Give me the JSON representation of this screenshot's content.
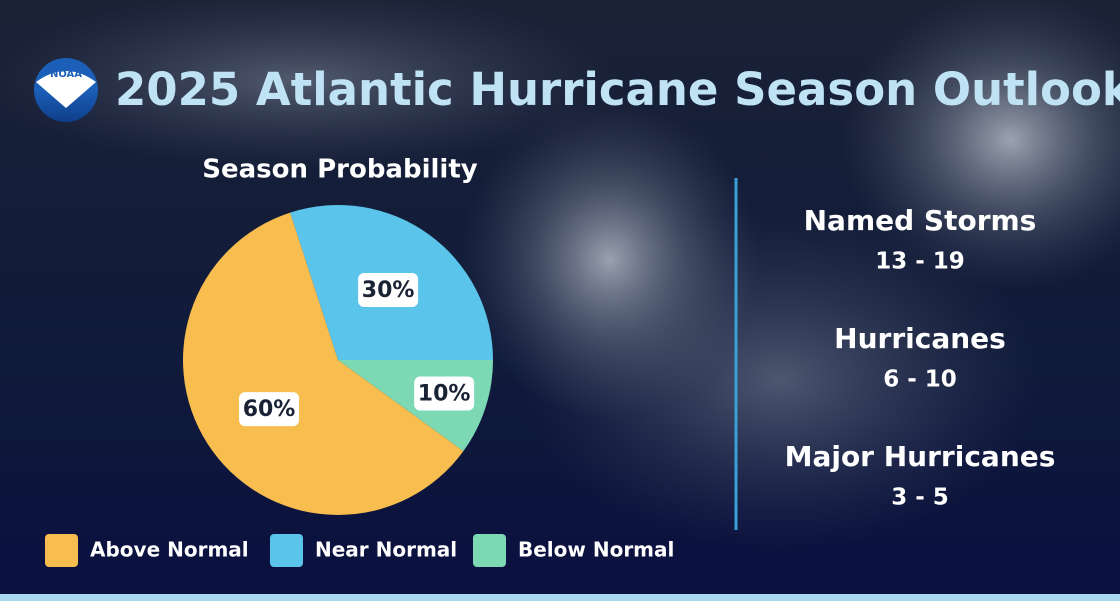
{
  "logo": {
    "text": "NOAA"
  },
  "title": "2025 Atlantic Hurricane Season Outlook",
  "chart_data": {
    "type": "pie",
    "title": "Season Probability",
    "categories": [
      "Above Normal",
      "Near Normal",
      "Below Normal"
    ],
    "values": [
      60,
      30,
      10
    ],
    "value_labels": [
      "60%",
      "30%",
      "10%"
    ],
    "colors": [
      "#f8bd4f",
      "#5bc4ea",
      "#7dd9b4"
    ]
  },
  "stats": [
    {
      "label": "Named Storms",
      "value": "13 - 19"
    },
    {
      "label": "Hurricanes",
      "value": "6 - 10"
    },
    {
      "label": "Major Hurricanes",
      "value": "3 - 5"
    }
  ]
}
